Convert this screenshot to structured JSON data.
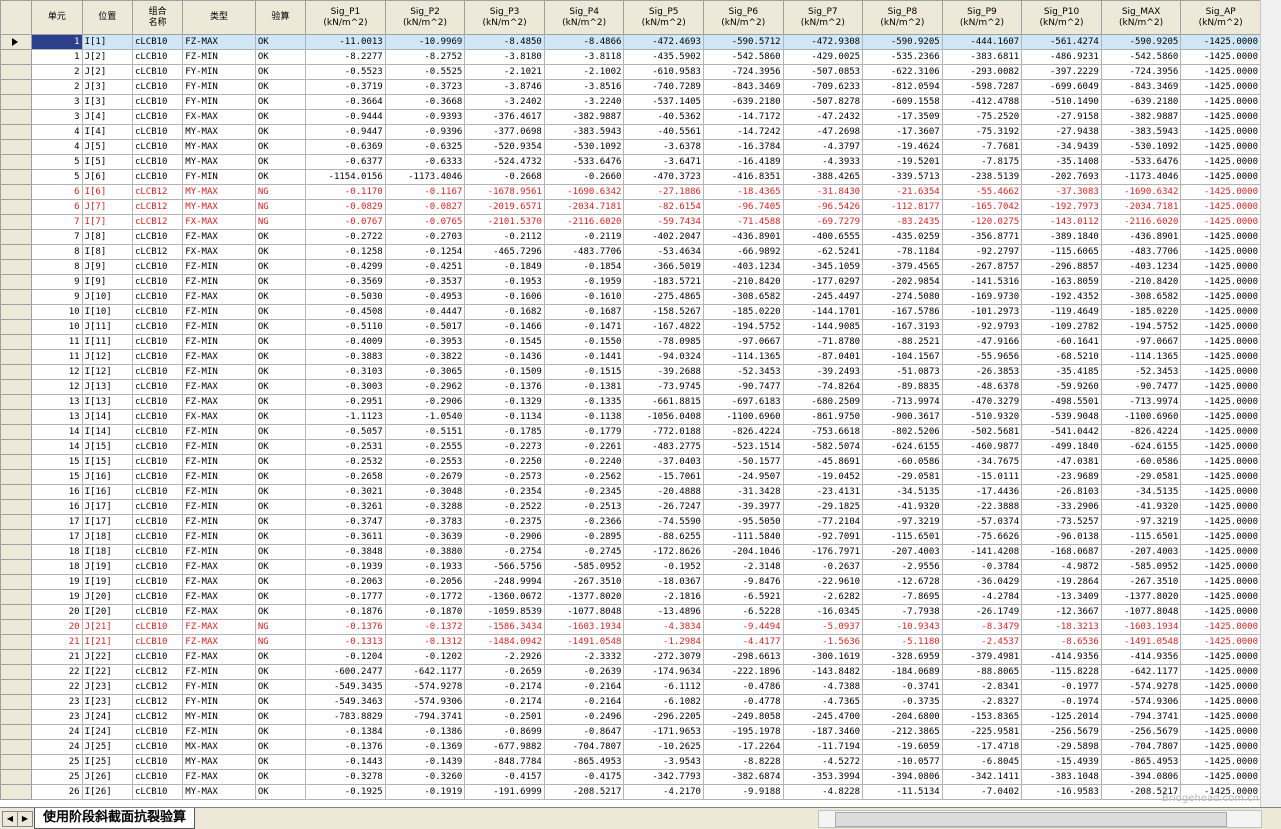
{
  "columns": [
    "",
    "单元",
    "位置",
    "组合\n名称",
    "类型",
    "验算",
    "Sig_P1\n(kN/m^2)",
    "Sig_P2\n(kN/m^2)",
    "Sig_P3\n(kN/m^2)",
    "Sig_P4\n(kN/m^2)",
    "Sig_P5\n(kN/m^2)",
    "Sig_P6\n(kN/m^2)",
    "Sig_P7\n(kN/m^2)",
    "Sig_P8\n(kN/m^2)",
    "Sig_P9\n(kN/m^2)",
    "Sig_P10\n(kN/m^2)",
    "Sig_MAX\n(kN/m^2)",
    "Sig_AP\n(kN/m^2)"
  ],
  "colors": {
    "ng_text": "#e02020",
    "selected_row": "#cfe6f7",
    "header_bg": "#ece9d8"
  },
  "rows": [
    [
      "1",
      "I[1]",
      "cLCB10",
      "FZ-MAX",
      "OK",
      "-11.0013",
      "-10.9969",
      "-8.4850",
      "-8.4866",
      "-472.4693",
      "-590.5712",
      "-472.9308",
      "-590.9205",
      "-444.1607",
      "-561.4274",
      "-590.9205",
      "-1425.0000"
    ],
    [
      "1",
      "J[2]",
      "cLCB10",
      "FZ-MIN",
      "OK",
      "-8.2277",
      "-8.2752",
      "-3.8180",
      "-3.8118",
      "-435.5902",
      "-542.5860",
      "-429.0025",
      "-535.2366",
      "-383.6811",
      "-486.9231",
      "-542.5860",
      "-1425.0000"
    ],
    [
      "2",
      "J[2]",
      "cLCB10",
      "FY-MIN",
      "OK",
      "-0.5523",
      "-0.5525",
      "-2.1021",
      "-2.1002",
      "-610.9583",
      "-724.3956",
      "-507.0853",
      "-622.3106",
      "-293.0082",
      "-397.2229",
      "-724.3956",
      "-1425.0000"
    ],
    [
      "2",
      "J[3]",
      "cLCB10",
      "FY-MIN",
      "OK",
      "-0.3719",
      "-0.3723",
      "-3.8746",
      "-3.8516",
      "-740.7289",
      "-843.3469",
      "-709.6233",
      "-812.0594",
      "-598.7287",
      "-699.6049",
      "-843.3469",
      "-1425.0000"
    ],
    [
      "3",
      "I[3]",
      "cLCB10",
      "FY-MIN",
      "OK",
      "-0.3664",
      "-0.3668",
      "-3.2402",
      "-3.2240",
      "-537.1405",
      "-639.2180",
      "-507.8278",
      "-609.1558",
      "-412.4788",
      "-510.1490",
      "-639.2180",
      "-1425.0000"
    ],
    [
      "3",
      "J[4]",
      "cLCB10",
      "FX-MAX",
      "OK",
      "-0.9444",
      "-0.9393",
      "-376.4617",
      "-382.9887",
      "-40.5362",
      "-14.7172",
      "-47.2432",
      "-17.3509",
      "-75.2520",
      "-27.9158",
      "-382.9887",
      "-1425.0000"
    ],
    [
      "4",
      "I[4]",
      "cLCB10",
      "MY-MAX",
      "OK",
      "-0.9447",
      "-0.9396",
      "-377.0698",
      "-383.5943",
      "-40.5561",
      "-14.7242",
      "-47.2698",
      "-17.3607",
      "-75.3192",
      "-27.9438",
      "-383.5943",
      "-1425.0000"
    ],
    [
      "4",
      "J[5]",
      "cLCB10",
      "MY-MAX",
      "OK",
      "-0.6369",
      "-0.6325",
      "-520.9354",
      "-530.1092",
      "-3.6378",
      "-16.3784",
      "-4.3797",
      "-19.4624",
      "-7.7681",
      "-34.9439",
      "-530.1092",
      "-1425.0000"
    ],
    [
      "5",
      "I[5]",
      "cLCB10",
      "MY-MAX",
      "OK",
      "-0.6377",
      "-0.6333",
      "-524.4732",
      "-533.6476",
      "-3.6471",
      "-16.4189",
      "-4.3933",
      "-19.5201",
      "-7.8175",
      "-35.1408",
      "-533.6476",
      "-1425.0000"
    ],
    [
      "5",
      "J[6]",
      "cLCB10",
      "FY-MIN",
      "OK",
      "-1154.0156",
      "-1173.4046",
      "-0.2668",
      "-0.2660",
      "-470.3723",
      "-416.8351",
      "-388.4265",
      "-339.5713",
      "-238.5139",
      "-202.7693",
      "-1173.4046",
      "-1425.0000"
    ],
    [
      "6",
      "I[6]",
      "cLCB12",
      "MY-MAX",
      "NG",
      "-0.1170",
      "-0.1167",
      "-1678.9561",
      "-1690.6342",
      "-27.1886",
      "-18.4365",
      "-31.8430",
      "-21.6354",
      "-55.4662",
      "-37.3083",
      "-1690.6342",
      "-1425.0000"
    ],
    [
      "6",
      "J[7]",
      "cLCB12",
      "MY-MAX",
      "NG",
      "-0.0829",
      "-0.0827",
      "-2019.6571",
      "-2034.7181",
      "-82.6154",
      "-96.7405",
      "-96.5426",
      "-112.8177",
      "-165.7042",
      "-192.7973",
      "-2034.7181",
      "-1425.0000"
    ],
    [
      "7",
      "I[7]",
      "cLCB12",
      "FX-MAX",
      "NG",
      "-0.0767",
      "-0.0765",
      "-2101.5370",
      "-2116.6020",
      "-59.7434",
      "-71.4588",
      "-69.7279",
      "-83.2435",
      "-120.0275",
      "-143.0112",
      "-2116.6020",
      "-1425.0000"
    ],
    [
      "7",
      "J[8]",
      "cLCB10",
      "FZ-MAX",
      "OK",
      "-0.2722",
      "-0.2703",
      "-0.2112",
      "-0.2119",
      "-402.2047",
      "-436.8901",
      "-400.6555",
      "-435.0259",
      "-356.8771",
      "-389.1840",
      "-436.8901",
      "-1425.0000"
    ],
    [
      "8",
      "I[8]",
      "cLCB12",
      "FX-MAX",
      "OK",
      "-0.1258",
      "-0.1254",
      "-465.7296",
      "-483.7706",
      "-53.4634",
      "-66.9892",
      "-62.5241",
      "-78.1184",
      "-92.2797",
      "-115.6065",
      "-483.7706",
      "-1425.0000"
    ],
    [
      "8",
      "J[9]",
      "cLCB10",
      "FZ-MIN",
      "OK",
      "-0.4299",
      "-0.4251",
      "-0.1849",
      "-0.1854",
      "-366.5019",
      "-403.1234",
      "-345.1059",
      "-379.4565",
      "-267.8757",
      "-296.8857",
      "-403.1234",
      "-1425.0000"
    ],
    [
      "9",
      "I[9]",
      "cLCB10",
      "FZ-MIN",
      "OK",
      "-0.3569",
      "-0.3537",
      "-0.1953",
      "-0.1959",
      "-183.5721",
      "-210.8420",
      "-177.0297",
      "-202.9854",
      "-141.5316",
      "-163.8059",
      "-210.8420",
      "-1425.0000"
    ],
    [
      "9",
      "J[10]",
      "cLCB10",
      "FZ-MAX",
      "OK",
      "-0.5030",
      "-0.4953",
      "-0.1606",
      "-0.1610",
      "-275.4865",
      "-308.6582",
      "-245.4497",
      "-274.5080",
      "-169.9730",
      "-192.4352",
      "-308.6582",
      "-1425.0000"
    ],
    [
      "10",
      "I[10]",
      "cLCB10",
      "FZ-MIN",
      "OK",
      "-0.4508",
      "-0.4447",
      "-0.1682",
      "-0.1687",
      "-158.5267",
      "-185.0220",
      "-144.1701",
      "-167.5786",
      "-101.2973",
      "-119.4649",
      "-185.0220",
      "-1425.0000"
    ],
    [
      "10",
      "J[11]",
      "cLCB10",
      "FZ-MIN",
      "OK",
      "-0.5110",
      "-0.5017",
      "-0.1466",
      "-0.1471",
      "-167.4822",
      "-194.5752",
      "-144.9085",
      "-167.3193",
      "-92.9793",
      "-109.2782",
      "-194.5752",
      "-1425.0000"
    ],
    [
      "11",
      "I[11]",
      "cLCB10",
      "FZ-MIN",
      "OK",
      "-0.4009",
      "-0.3953",
      "-0.1545",
      "-0.1550",
      "-78.0985",
      "-97.0667",
      "-71.8780",
      "-88.2521",
      "-47.9166",
      "-60.1641",
      "-97.0667",
      "-1425.0000"
    ],
    [
      "11",
      "J[12]",
      "cLCB10",
      "FZ-MAX",
      "OK",
      "-0.3883",
      "-0.3822",
      "-0.1436",
      "-0.1441",
      "-94.0324",
      "-114.1365",
      "-87.0401",
      "-104.1567",
      "-55.9656",
      "-68.5210",
      "-114.1365",
      "-1425.0000"
    ],
    [
      "12",
      "I[12]",
      "cLCB10",
      "FZ-MIN",
      "OK",
      "-0.3103",
      "-0.3065",
      "-0.1509",
      "-0.1515",
      "-39.2688",
      "-52.3453",
      "-39.2493",
      "-51.0873",
      "-26.3853",
      "-35.4185",
      "-52.3453",
      "-1425.0000"
    ],
    [
      "12",
      "J[13]",
      "cLCB10",
      "FZ-MAX",
      "OK",
      "-0.3003",
      "-0.2962",
      "-0.1376",
      "-0.1381",
      "-73.9745",
      "-90.7477",
      "-74.8264",
      "-89.8835",
      "-48.6378",
      "-59.9260",
      "-90.7477",
      "-1425.0000"
    ],
    [
      "13",
      "I[13]",
      "cLCB10",
      "FZ-MAX",
      "OK",
      "-0.2951",
      "-0.2906",
      "-0.1329",
      "-0.1335",
      "-661.8815",
      "-697.6183",
      "-680.2509",
      "-713.9974",
      "-470.3279",
      "-498.5501",
      "-713.9974",
      "-1425.0000"
    ],
    [
      "13",
      "J[14]",
      "cLCB10",
      "FX-MAX",
      "OK",
      "-1.1123",
      "-1.0540",
      "-0.1134",
      "-0.1138",
      "-1056.0408",
      "-1100.6960",
      "-861.9750",
      "-900.3617",
      "-510.9320",
      "-539.9048",
      "-1100.6960",
      "-1425.0000"
    ],
    [
      "14",
      "I[14]",
      "cLCB10",
      "FZ-MIN",
      "OK",
      "-0.5057",
      "-0.5151",
      "-0.1785",
      "-0.1779",
      "-772.0188",
      "-826.4224",
      "-753.6618",
      "-802.5206",
      "-502.5681",
      "-541.0442",
      "-826.4224",
      "-1425.0000"
    ],
    [
      "14",
      "J[15]",
      "cLCB10",
      "FZ-MIN",
      "OK",
      "-0.2531",
      "-0.2555",
      "-0.2273",
      "-0.2261",
      "-483.2775",
      "-523.1514",
      "-582.5074",
      "-624.6155",
      "-460.9877",
      "-499.1840",
      "-624.6155",
      "-1425.0000"
    ],
    [
      "15",
      "I[15]",
      "cLCB10",
      "FZ-MIN",
      "OK",
      "-0.2532",
      "-0.2553",
      "-0.2250",
      "-0.2240",
      "-37.0403",
      "-50.1577",
      "-45.8691",
      "-60.0586",
      "-34.7675",
      "-47.0381",
      "-60.0586",
      "-1425.0000"
    ],
    [
      "15",
      "J[16]",
      "cLCB10",
      "FZ-MIN",
      "OK",
      "-0.2658",
      "-0.2679",
      "-0.2573",
      "-0.2562",
      "-15.7061",
      "-24.9507",
      "-19.0452",
      "-29.0581",
      "-15.0111",
      "-23.9689",
      "-29.0581",
      "-1425.0000"
    ],
    [
      "16",
      "I[16]",
      "cLCB10",
      "FZ-MIN",
      "OK",
      "-0.3021",
      "-0.3048",
      "-0.2354",
      "-0.2345",
      "-20.4888",
      "-31.3428",
      "-23.4131",
      "-34.5135",
      "-17.4436",
      "-26.8103",
      "-34.5135",
      "-1425.0000"
    ],
    [
      "16",
      "J[17]",
      "cLCB10",
      "FZ-MIN",
      "OK",
      "-0.3261",
      "-0.3288",
      "-0.2522",
      "-0.2513",
      "-26.7247",
      "-39.3977",
      "-29.1825",
      "-41.9320",
      "-22.3888",
      "-33.2906",
      "-41.9320",
      "-1425.0000"
    ],
    [
      "17",
      "I[17]",
      "cLCB10",
      "FZ-MIN",
      "OK",
      "-0.3747",
      "-0.3783",
      "-0.2375",
      "-0.2366",
      "-74.5590",
      "-95.5050",
      "-77.2104",
      "-97.3219",
      "-57.0374",
      "-73.5257",
      "-97.3219",
      "-1425.0000"
    ],
    [
      "17",
      "J[18]",
      "cLCB10",
      "FZ-MIN",
      "OK",
      "-0.3611",
      "-0.3639",
      "-0.2906",
      "-0.2895",
      "-88.6255",
      "-111.5840",
      "-92.7091",
      "-115.6501",
      "-75.6626",
      "-96.0138",
      "-115.6501",
      "-1425.0000"
    ],
    [
      "18",
      "I[18]",
      "cLCB10",
      "FZ-MIN",
      "OK",
      "-0.3848",
      "-0.3880",
      "-0.2754",
      "-0.2745",
      "-172.8626",
      "-204.1046",
      "-176.7971",
      "-207.4003",
      "-141.4208",
      "-168.0687",
      "-207.4003",
      "-1425.0000"
    ],
    [
      "18",
      "J[19]",
      "cLCB10",
      "FZ-MAX",
      "OK",
      "-0.1939",
      "-0.1933",
      "-566.5756",
      "-585.0952",
      "-0.1952",
      "-2.3148",
      "-0.2637",
      "-2.9556",
      "-0.3784",
      "-4.9872",
      "-585.0952",
      "-1425.0000"
    ],
    [
      "19",
      "I[19]",
      "cLCB10",
      "FZ-MAX",
      "OK",
      "-0.2063",
      "-0.2056",
      "-248.9994",
      "-267.3510",
      "-18.0367",
      "-9.8476",
      "-22.9610",
      "-12.6728",
      "-36.0429",
      "-19.2864",
      "-267.3510",
      "-1425.0000"
    ],
    [
      "19",
      "J[20]",
      "cLCB10",
      "FZ-MAX",
      "OK",
      "-0.1777",
      "-0.1772",
      "-1360.0672",
      "-1377.8020",
      "-2.1816",
      "-6.5921",
      "-2.6282",
      "-7.8695",
      "-4.2784",
      "-13.3409",
      "-1377.8020",
      "-1425.0000"
    ],
    [
      "20",
      "I[20]",
      "cLCB10",
      "FZ-MAX",
      "OK",
      "-0.1876",
      "-0.1870",
      "-1059.8539",
      "-1077.8048",
      "-13.4896",
      "-6.5228",
      "-16.0345",
      "-7.7938",
      "-26.1749",
      "-12.3667",
      "-1077.8048",
      "-1425.0000"
    ],
    [
      "20",
      "J[21]",
      "cLCB10",
      "FZ-MAX",
      "NG",
      "-0.1376",
      "-0.1372",
      "-1586.3434",
      "-1603.1934",
      "-4.3834",
      "-9.4494",
      "-5.0937",
      "-10.9343",
      "-8.3479",
      "-18.3213",
      "-1603.1934",
      "-1425.0000"
    ],
    [
      "21",
      "I[21]",
      "cLCB10",
      "FZ-MAX",
      "NG",
      "-0.1313",
      "-0.1312",
      "-1484.0942",
      "-1491.0548",
      "-1.2984",
      "-4.4177",
      "-1.5636",
      "-5.1180",
      "-2.4537",
      "-8.6536",
      "-1491.0548",
      "-1425.0000"
    ],
    [
      "21",
      "J[22]",
      "cLCB10",
      "FZ-MAX",
      "OK",
      "-0.1204",
      "-0.1202",
      "-2.2926",
      "-2.3332",
      "-272.3079",
      "-298.6613",
      "-300.1619",
      "-328.6959",
      "-379.4981",
      "-414.9356",
      "-414.9356",
      "-1425.0000"
    ],
    [
      "22",
      "I[22]",
      "cLCB12",
      "FZ-MIN",
      "OK",
      "-600.2477",
      "-642.1177",
      "-0.2659",
      "-0.2639",
      "-174.9634",
      "-222.1896",
      "-143.8482",
      "-184.0689",
      "-88.8065",
      "-115.8228",
      "-642.1177",
      "-1425.0000"
    ],
    [
      "22",
      "J[23]",
      "cLCB12",
      "FY-MIN",
      "OK",
      "-549.3435",
      "-574.9278",
      "-0.2174",
      "-0.2164",
      "-6.1112",
      "-0.4786",
      "-4.7388",
      "-0.3741",
      "-2.8341",
      "-0.1977",
      "-574.9278",
      "-1425.0000"
    ],
    [
      "23",
      "I[23]",
      "cLCB12",
      "FY-MIN",
      "OK",
      "-549.3463",
      "-574.9306",
      "-0.2174",
      "-0.2164",
      "-6.1082",
      "-0.4778",
      "-4.7365",
      "-0.3735",
      "-2.8327",
      "-0.1974",
      "-574.9306",
      "-1425.0000"
    ],
    [
      "23",
      "J[24]",
      "cLCB12",
      "MY-MIN",
      "OK",
      "-783.8829",
      "-794.3741",
      "-0.2501",
      "-0.2496",
      "-296.2205",
      "-249.8058",
      "-245.4700",
      "-204.6800",
      "-153.8365",
      "-125.2014",
      "-794.3741",
      "-1425.0000"
    ],
    [
      "24",
      "I[24]",
      "cLCB10",
      "FZ-MIN",
      "OK",
      "-0.1384",
      "-0.1386",
      "-0.8699",
      "-0.8647",
      "-171.9653",
      "-195.1978",
      "-187.3460",
      "-212.3865",
      "-225.9581",
      "-256.5679",
      "-256.5679",
      "-1425.0000"
    ],
    [
      "24",
      "J[25]",
      "cLCB10",
      "MX-MAX",
      "OK",
      "-0.1376",
      "-0.1369",
      "-677.9882",
      "-704.7807",
      "-10.2625",
      "-17.2264",
      "-11.7194",
      "-19.6059",
      "-17.4718",
      "-29.5898",
      "-704.7807",
      "-1425.0000"
    ],
    [
      "25",
      "I[25]",
      "cLCB10",
      "MY-MAX",
      "OK",
      "-0.1443",
      "-0.1439",
      "-848.7784",
      "-865.4953",
      "-3.9543",
      "-8.8228",
      "-4.5272",
      "-10.0577",
      "-6.8045",
      "-15.4939",
      "-865.4953",
      "-1425.0000"
    ],
    [
      "25",
      "J[26]",
      "cLCB10",
      "FZ-MAX",
      "OK",
      "-0.3278",
      "-0.3260",
      "-0.4157",
      "-0.4175",
      "-342.7793",
      "-382.6874",
      "-353.3994",
      "-394.0806",
      "-342.1411",
      "-383.1048",
      "-394.0806",
      "-1425.0000"
    ],
    [
      "26",
      "I[26]",
      "cLCB10",
      "MY-MAX",
      "OK",
      "-0.1925",
      "-0.1919",
      "-191.6999",
      "-208.5217",
      "-4.2170",
      "-9.9188",
      "-4.8228",
      "-11.5134",
      "-7.0402",
      "-16.9583",
      "-208.5217",
      "-1425.0000"
    ]
  ],
  "sheet_tab": "使用阶段斜截面抗裂验算",
  "watermark": "Bridgehead.com.cn"
}
